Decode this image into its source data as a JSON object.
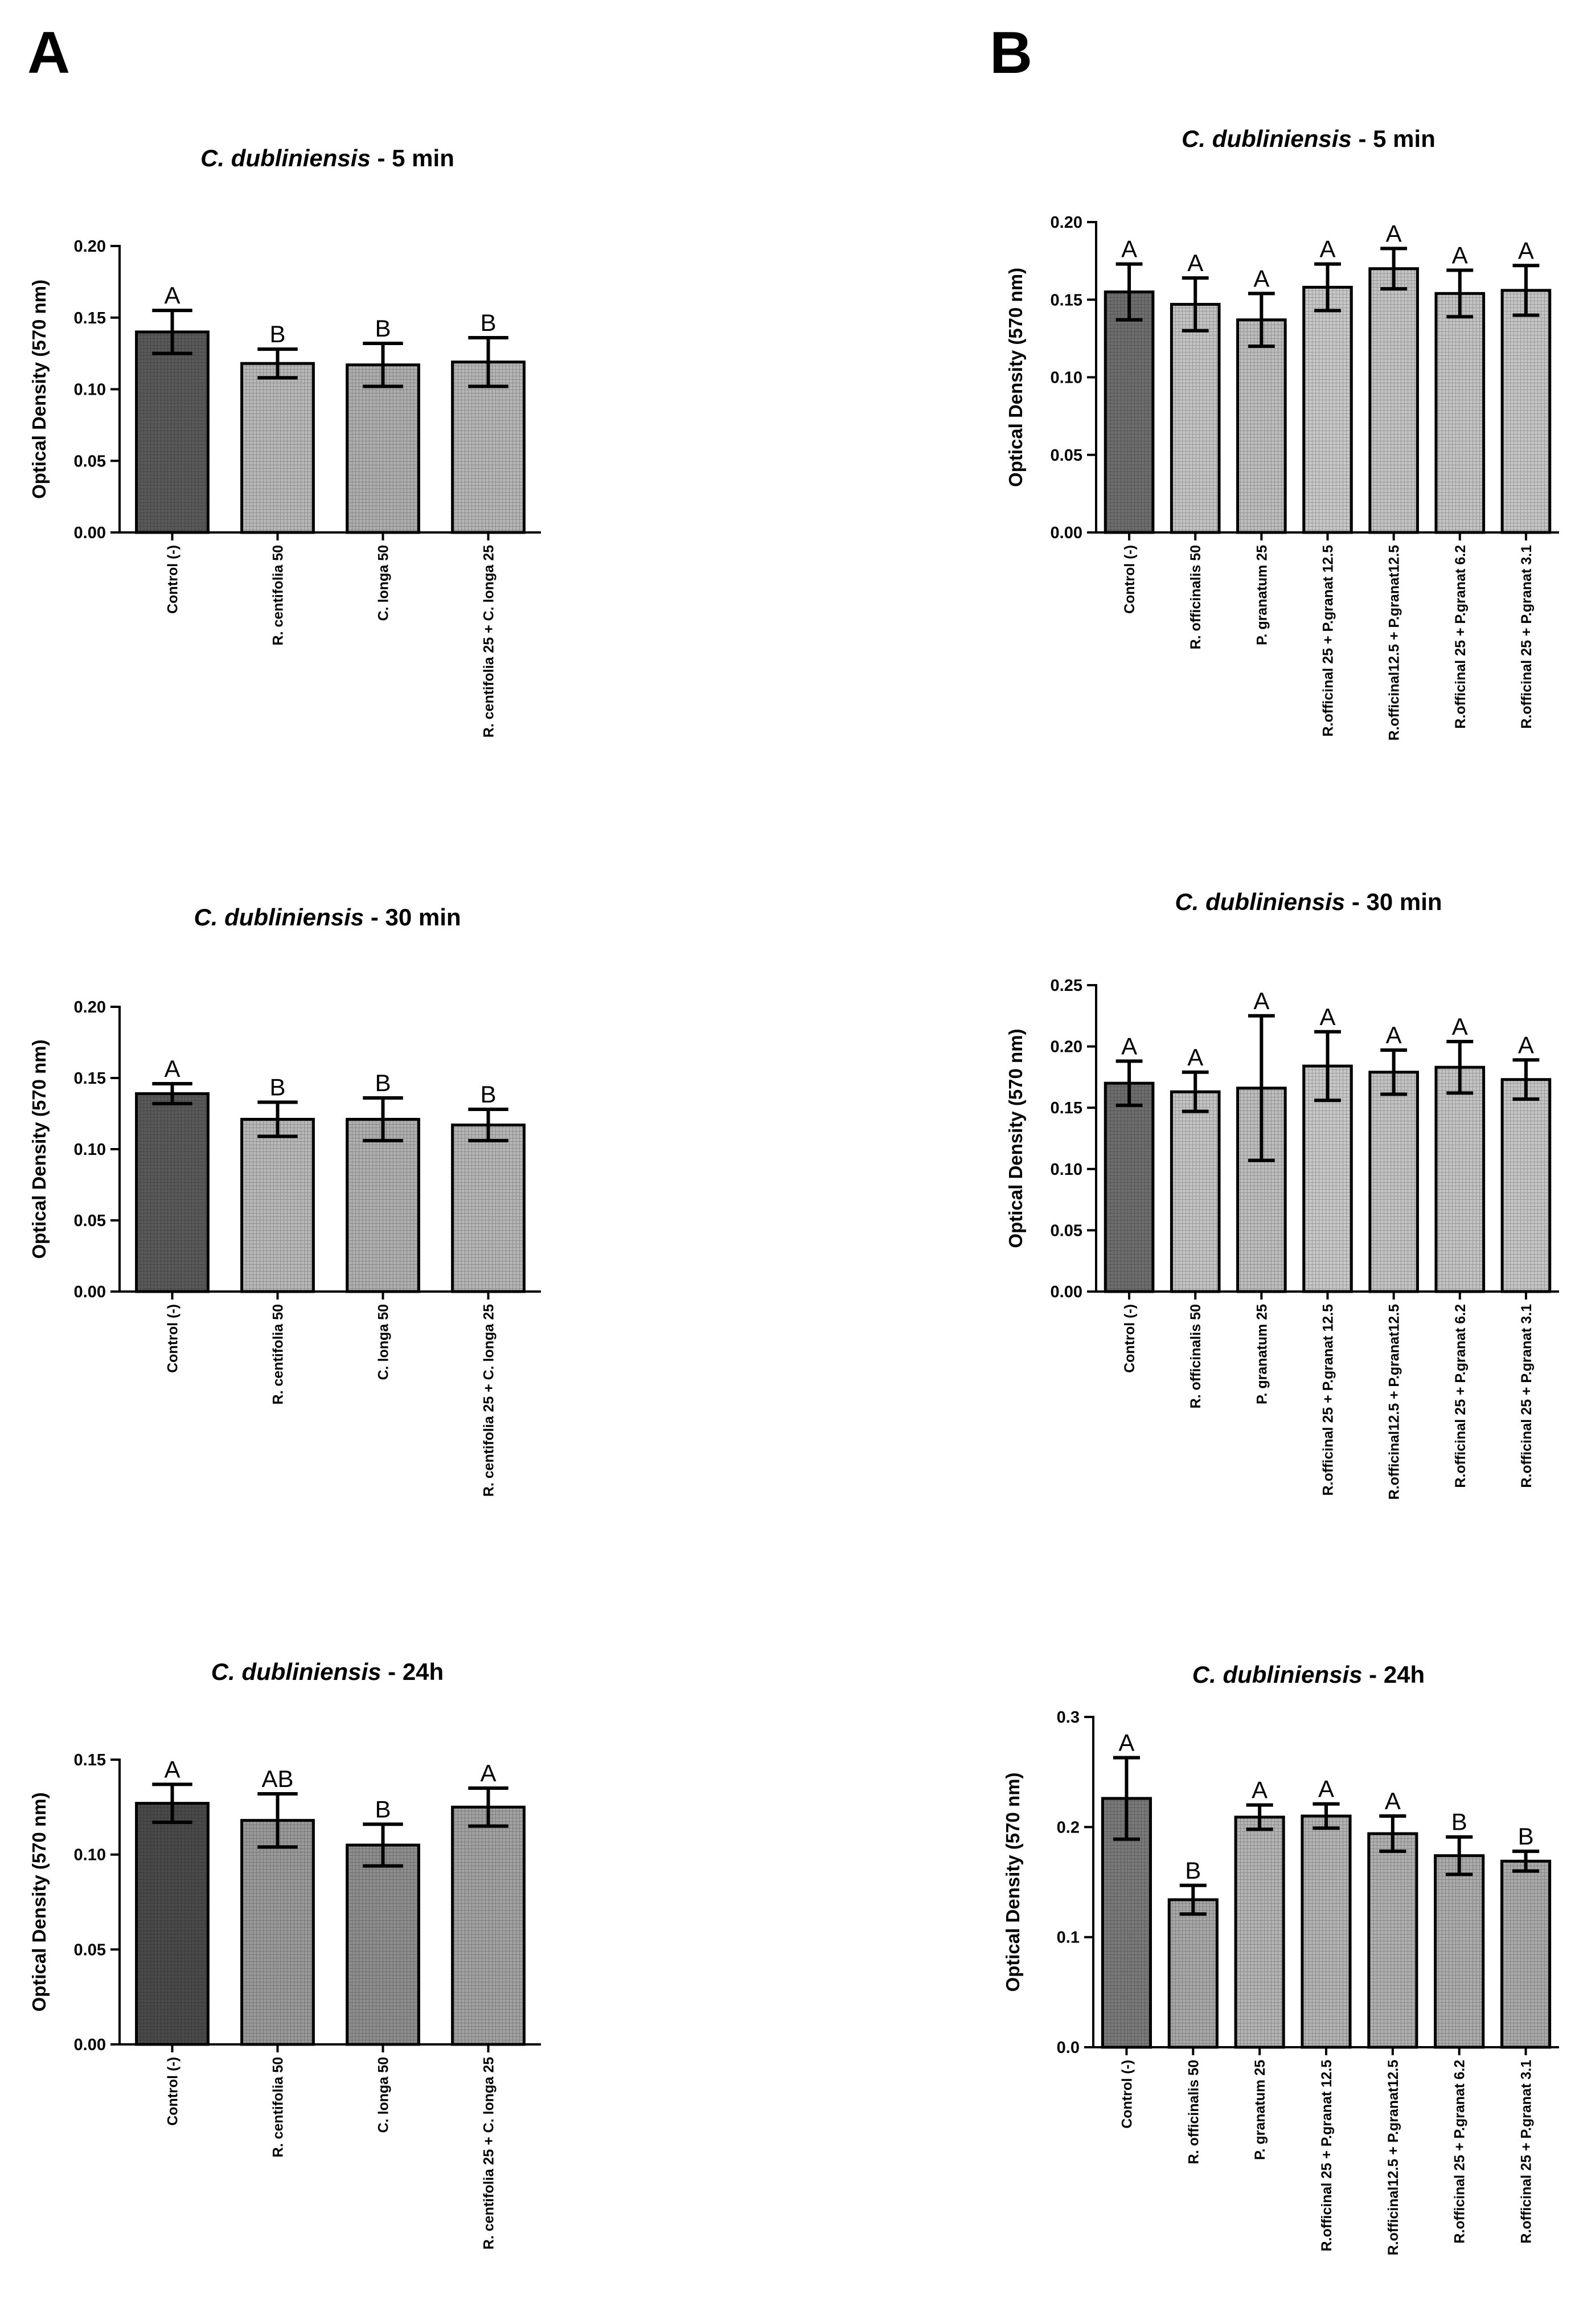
{
  "figure": {
    "panels": [
      {
        "letter": "A"
      },
      {
        "letter": "B"
      }
    ]
  },
  "chart_data": [
    {
      "panel": "A",
      "type": "bar",
      "title": {
        "species": "C. dubliniensis",
        "suffix": " - 5 min"
      },
      "ylabel": "Optical Density (570 nm)",
      "ylim": [
        0,
        0.2
      ],
      "yticks": [
        "0.00",
        "0.05",
        "0.10",
        "0.15",
        "0.20"
      ],
      "categories": [
        "Control (-)",
        "R. centifolia 50",
        "C. longa 50",
        "R. centifolia 25 + C. longa 25"
      ],
      "values": [
        0.14,
        0.118,
        0.117,
        0.119
      ],
      "errors": [
        0.015,
        0.01,
        0.015,
        0.017
      ],
      "labels": [
        "A",
        "B",
        "B",
        "B"
      ],
      "fills": [
        "#5a5a5a",
        "#b8b8b8",
        "#aeaeae",
        "#b6b6b6"
      ]
    },
    {
      "panel": "B",
      "type": "bar",
      "title": {
        "species": "C. dubliniensis",
        "suffix": " - 5 min"
      },
      "ylabel": "Optical Density (570 nm)",
      "ylim": [
        0,
        0.2
      ],
      "yticks": [
        "0.00",
        "0.05",
        "0.10",
        "0.15",
        "0.20"
      ],
      "categories": [
        "Control (-)",
        "R. officinalis 50",
        "P. granatum 25",
        "R.officinal 25 + P.granat 12.5",
        "R.officinal12.5 + P.granat12.5",
        "R.officinal 25 + P.granat 6.2",
        "R.officinal 25 + P.granat 3.1"
      ],
      "values": [
        0.155,
        0.147,
        0.137,
        0.158,
        0.17,
        0.154,
        0.156
      ],
      "errors": [
        0.018,
        0.017,
        0.017,
        0.015,
        0.013,
        0.015,
        0.016
      ],
      "labels": [
        "A",
        "A",
        "A",
        "A",
        "A",
        "A",
        "A"
      ],
      "fills": [
        "#6e6e6e",
        "#c4c4c4",
        "#bebebe",
        "#c8c8c8",
        "#c4c4c4",
        "#c4c4c4",
        "#c6c6c6"
      ]
    },
    {
      "panel": "A",
      "type": "bar",
      "title": {
        "species": "C. dubliniensis",
        "suffix": " - 30 min"
      },
      "ylabel": "Optical Density (570 nm)",
      "ylim": [
        0,
        0.2
      ],
      "yticks": [
        "0.00",
        "0.05",
        "0.10",
        "0.15",
        "0.20"
      ],
      "categories": [
        "Control (-)",
        "R. centifolia 50",
        "C. longa 50",
        "R. centifolia 25 + C. longa 25"
      ],
      "values": [
        0.139,
        0.121,
        0.121,
        0.117
      ],
      "errors": [
        0.007,
        0.012,
        0.015,
        0.011
      ],
      "labels": [
        "A",
        "B",
        "B",
        "B"
      ],
      "fills": [
        "#5a5a5a",
        "#b8b8b8",
        "#b0b0b0",
        "#b6b6b6"
      ]
    },
    {
      "panel": "B",
      "type": "bar",
      "title": {
        "species": "C. dubliniensis",
        "suffix": " - 30 min"
      },
      "ylabel": "Optical Density (570 nm)",
      "ylim": [
        0,
        0.25
      ],
      "yticks": [
        "0.00",
        "0.05",
        "0.10",
        "0.15",
        "0.20",
        "0.25"
      ],
      "categories": [
        "Control (-)",
        "R. officinalis 50",
        "P. granatum 25",
        "R.officinal 25 + P.granat 12.5",
        "R.officinal12.5 + P.granat12.5",
        "R.officinal 25 + P.granat 6.2",
        "R.officinal 25 + P.granat 3.1"
      ],
      "values": [
        0.17,
        0.163,
        0.166,
        0.184,
        0.179,
        0.183,
        0.173
      ],
      "errors": [
        0.018,
        0.016,
        0.059,
        0.028,
        0.018,
        0.021,
        0.016
      ],
      "labels": [
        "A",
        "A",
        "A",
        "A",
        "A",
        "A",
        "A"
      ],
      "fills": [
        "#6e6e6e",
        "#c4c4c4",
        "#bebebe",
        "#c8c8c8",
        "#c4c4c4",
        "#c4c4c4",
        "#c6c6c6"
      ]
    },
    {
      "panel": "A",
      "type": "bar",
      "title": {
        "species": "C. dubliniensis",
        "suffix": " - 24h"
      },
      "ylabel": "Optical Density (570 nm)",
      "ylim": [
        0,
        0.15
      ],
      "yticks": [
        "0.00",
        "0.05",
        "0.10",
        "0.15"
      ],
      "categories": [
        "Control (-)",
        "R. centifolia 50",
        "C. longa 50",
        "R. centifolia 25 + C. longa 25"
      ],
      "values": [
        0.127,
        0.118,
        0.105,
        0.125
      ],
      "errors": [
        0.01,
        0.014,
        0.011,
        0.01
      ],
      "labels": [
        "A",
        "AB",
        "B",
        "A"
      ],
      "fills": [
        "#4a4a4a",
        "#9a9a9a",
        "#8e8e8e",
        "#a2a2a2"
      ]
    },
    {
      "panel": "B",
      "type": "bar",
      "title": {
        "species": "C. dubliniensis",
        "suffix": " - 24h"
      },
      "ylabel": "Optical Density (570 nm)",
      "ylim": [
        0,
        0.3
      ],
      "yticks": [
        "0.0",
        "0.1",
        "0.2",
        "0.3"
      ],
      "categories": [
        "Control (-)",
        "R. officinalis 50",
        "P. granatum 25",
        "R.officinal 25 + P.granat 12.5",
        "R.officinal12.5 + P.granat12.5",
        "R.officinal 25 + P.granat 6.2",
        "R.officinal 25 + P.granat 3.1"
      ],
      "values": [
        0.226,
        0.134,
        0.209,
        0.21,
        0.194,
        0.174,
        0.169
      ],
      "errors": [
        0.037,
        0.013,
        0.011,
        0.011,
        0.016,
        0.017,
        0.009
      ],
      "labels": [
        "A",
        "B",
        "A",
        "A",
        "A",
        "B",
        "B"
      ],
      "fills": [
        "#7a7a7a",
        "#a8a8a8",
        "#b4b4b4",
        "#b4b4b4",
        "#b0b0b0",
        "#acacac",
        "#aaaaaa"
      ]
    }
  ]
}
